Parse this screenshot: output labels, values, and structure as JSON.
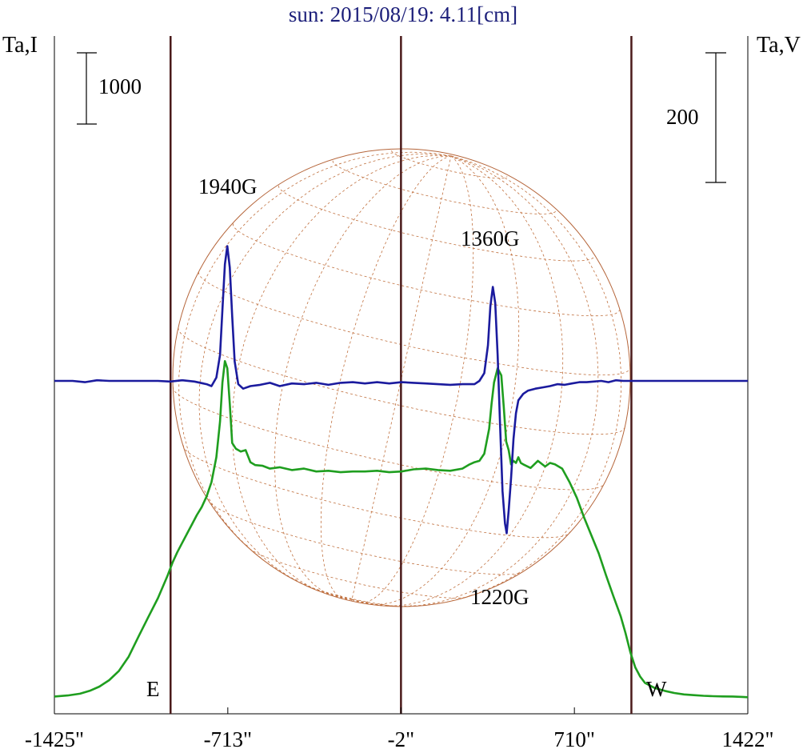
{
  "chart_data": {
    "type": "line",
    "title": "sun: 2015/08/19: 4.11[cm]",
    "left_axis_label": "Ta,I",
    "right_axis_label": "Ta,V",
    "left_scale_bar": "1000",
    "right_scale_bar": "200",
    "x_unit": "arcsec",
    "x_ticks": [
      "-1425\"",
      "-713\"",
      "-2\"",
      "710\"",
      "1422\""
    ],
    "x_tick_values": [
      -1425,
      -713,
      -2,
      710,
      1422
    ],
    "xlim": [
      -1425,
      1422
    ],
    "direction_labels": {
      "east": "E",
      "west": "W"
    },
    "markers": [
      -948,
      -2,
      944
    ],
    "annotations": [
      {
        "text": "1940G",
        "x": -713
      },
      {
        "text": "1360G",
        "x": 385
      },
      {
        "text": "1220G",
        "x": 432
      }
    ],
    "series": [
      {
        "name": "Ta,I",
        "color": "#1f9e1f",
        "x": [
          -1425,
          -1370,
          -1320,
          -1280,
          -1240,
          -1200,
          -1160,
          -1120,
          -1080,
          -1040,
          -1000,
          -960,
          -940,
          -920,
          -900,
          -880,
          -860,
          -840,
          -820,
          -800,
          -780,
          -760,
          -745,
          -735,
          -725,
          -715,
          -705,
          -695,
          -680,
          -660,
          -640,
          -620,
          -600,
          -570,
          -540,
          -500,
          -450,
          -400,
          -350,
          -300,
          -250,
          -200,
          -150,
          -100,
          -50,
          0,
          50,
          100,
          150,
          200,
          250,
          280,
          300,
          320,
          340,
          360,
          370,
          380,
          395,
          410,
          420,
          430,
          440,
          450,
          460,
          470,
          480,
          490,
          500,
          530,
          560,
          590,
          610,
          630,
          660,
          690,
          720,
          750,
          780,
          810,
          840,
          870,
          900,
          920,
          940,
          960,
          980,
          1000,
          1040,
          1080,
          1120,
          1160,
          1200,
          1240,
          1280,
          1320,
          1360,
          1400,
          1422
        ],
        "y": [
          40,
          55,
          80,
          120,
          180,
          270,
          400,
          600,
          880,
          1150,
          1420,
          1740,
          1920,
          2070,
          2200,
          2330,
          2460,
          2590,
          2700,
          2850,
          3050,
          3400,
          3900,
          4450,
          4750,
          4650,
          4150,
          3600,
          3520,
          3480,
          3500,
          3330,
          3290,
          3280,
          3240,
          3260,
          3220,
          3240,
          3200,
          3210,
          3190,
          3200,
          3200,
          3210,
          3190,
          3200,
          3230,
          3240,
          3220,
          3210,
          3240,
          3300,
          3330,
          3350,
          3450,
          3800,
          4150,
          4450,
          4650,
          4550,
          4100,
          3620,
          3500,
          3300,
          3350,
          3320,
          3400,
          3320,
          3300,
          3250,
          3350,
          3270,
          3320,
          3300,
          3240,
          3050,
          2830,
          2550,
          2300,
          2050,
          1740,
          1450,
          1170,
          930,
          660,
          450,
          320,
          230,
          160,
          120,
          90,
          70,
          60,
          50,
          45,
          42,
          40,
          35,
          30
        ]
      },
      {
        "name": "Ta,V",
        "color": "#1b1b9e",
        "x": [
          -1425,
          -1350,
          -1300,
          -1250,
          -1200,
          -1150,
          -1100,
          -1050,
          -1000,
          -950,
          -900,
          -850,
          -800,
          -780,
          -760,
          -745,
          -735,
          -725,
          -715,
          -705,
          -695,
          -685,
          -670,
          -650,
          -620,
          -580,
          -540,
          -500,
          -450,
          -400,
          -350,
          -300,
          -250,
          -200,
          -150,
          -100,
          -50,
          0,
          50,
          100,
          150,
          200,
          250,
          300,
          320,
          340,
          355,
          365,
          375,
          385,
          395,
          405,
          415,
          425,
          432,
          440,
          450,
          460,
          470,
          480,
          500,
          520,
          550,
          580,
          610,
          640,
          670,
          700,
          730,
          760,
          790,
          820,
          850,
          880,
          910,
          940,
          970,
          1000,
          1050,
          1100,
          1150,
          1200,
          1250,
          1300,
          1350,
          1422
        ],
        "y": [
          0,
          0,
          -2,
          1,
          0,
          0,
          0,
          0,
          0,
          -1,
          1,
          -1,
          -5,
          -8,
          5,
          40,
          110,
          180,
          208,
          175,
          100,
          30,
          -5,
          -12,
          -8,
          -6,
          -3,
          -8,
          -4,
          -5,
          -3,
          -6,
          -3,
          -2,
          -4,
          -2,
          -4,
          -2,
          -3,
          -4,
          -5,
          -6,
          -5,
          -5,
          0,
          12,
          55,
          115,
          145,
          120,
          40,
          -70,
          -170,
          -220,
          -235,
          -200,
          -150,
          -90,
          -50,
          -30,
          -20,
          -15,
          -12,
          -10,
          -8,
          -5,
          -6,
          -4,
          -2,
          -2,
          -1,
          0,
          -2,
          1,
          0,
          0,
          0,
          0,
          0,
          0,
          0,
          0,
          0,
          0,
          0,
          0
        ]
      }
    ]
  }
}
